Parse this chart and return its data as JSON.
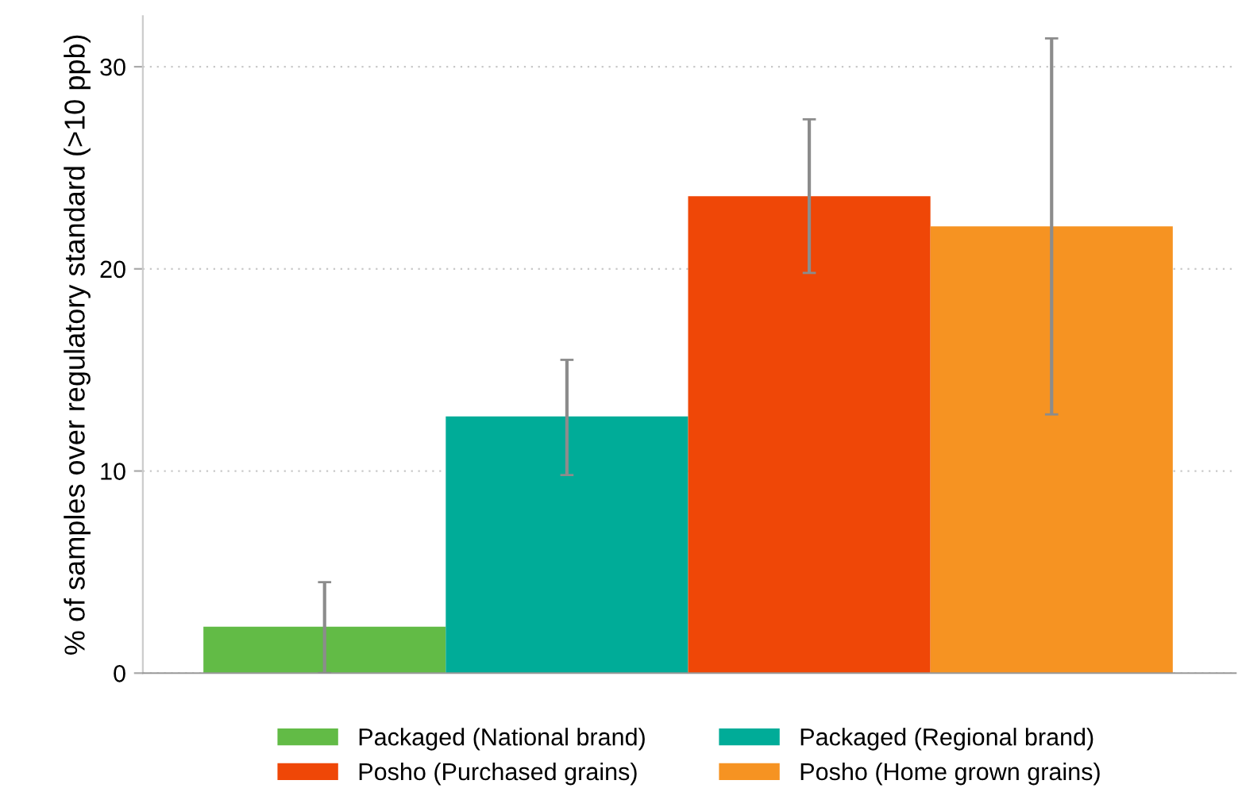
{
  "chart_data": {
    "type": "bar",
    "ylabel": "% of samples over regulatory standard (>10 ppb)",
    "categories": [
      null,
      null,
      null,
      null
    ],
    "series": [
      {
        "name": "Packaged (National brand)",
        "color": "#62bb46",
        "values": [
          2.3,
          null,
          null,
          null
        ],
        "errors": [
          [
            0,
            4.5
          ],
          null,
          null,
          null
        ]
      },
      {
        "name": "Packaged (Regional brand)",
        "color": "#00ac98",
        "values": [
          null,
          12.7,
          null,
          null
        ],
        "errors": [
          null,
          [
            9.8,
            15.5
          ],
          null,
          null
        ]
      },
      {
        "name": "Posho (Purchased grains)",
        "color": "#ef4707",
        "values": [
          null,
          null,
          23.6,
          null
        ],
        "errors": [
          null,
          null,
          [
            19.8,
            27.4
          ],
          null
        ]
      },
      {
        "name": "Posho (Home grown grains)",
        "color": "#f69322",
        "values": [
          null,
          null,
          null,
          22.1
        ],
        "errors": [
          null,
          null,
          null,
          [
            12.8,
            31.4
          ]
        ]
      }
    ],
    "ylim": [
      0,
      32.5
    ],
    "yticks": [
      0,
      10,
      20,
      30
    ],
    "grid": "y",
    "legend": "bottom",
    "tick_labels": "y"
  }
}
